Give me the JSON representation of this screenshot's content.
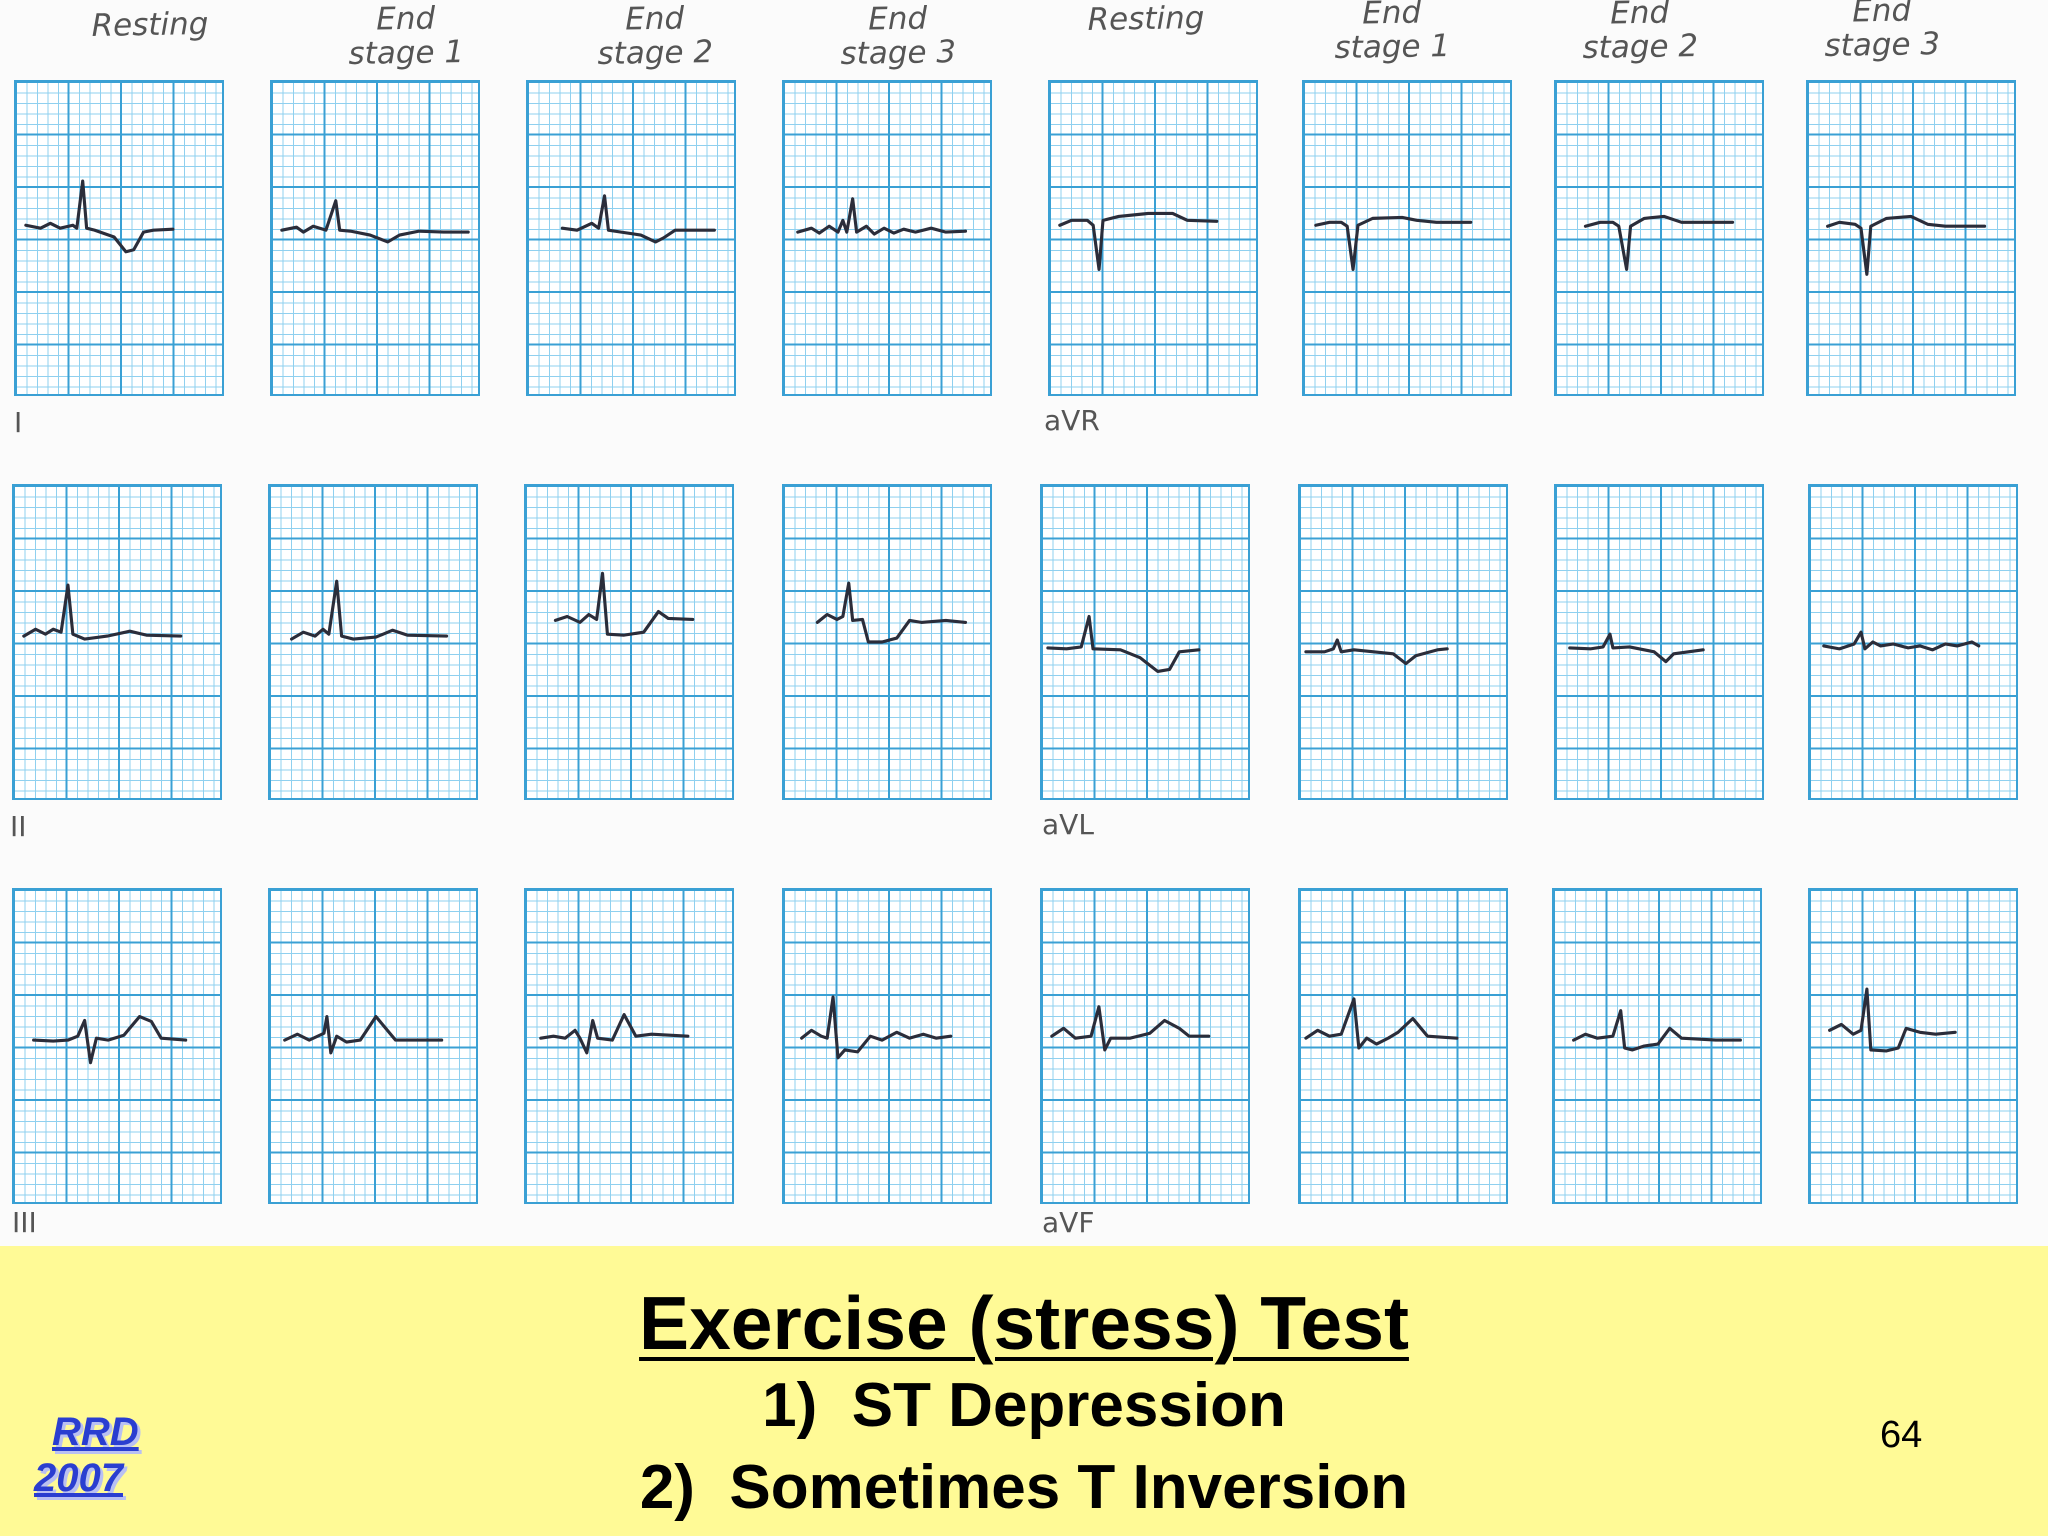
{
  "column_headers": [
    {
      "line1": "",
      "line2": "Resting"
    },
    {
      "line1": "End",
      "line2": "stage 1"
    },
    {
      "line1": "End",
      "line2": "stage 2"
    },
    {
      "line1": "End",
      "line2": "stage 3"
    },
    {
      "line1": "",
      "line2": "Resting"
    },
    {
      "line1": "End",
      "line2": "stage 1"
    },
    {
      "line1": "End",
      "line2": "stage 2"
    },
    {
      "line1": "End",
      "line2": "stage 3"
    }
  ],
  "lead_labels": [
    "I",
    "aVR",
    "II",
    "aVL",
    "III",
    "aVF"
  ],
  "ecg_strip_grid": {
    "rows": 3,
    "columns": 8,
    "rows_leads_left": [
      "I",
      "II",
      "III"
    ],
    "rows_leads_right": [
      "aVR",
      "aVL",
      "aVF"
    ],
    "trace_colors": {
      "trace": "#2b2d3a",
      "grid_major": "#3aa0d4",
      "grid_minor": "#8fd0ef"
    }
  },
  "slide": {
    "title": "Exercise (stress) Test",
    "points": [
      "1)  ST Depression",
      "2)  Sometimes T Inversion"
    ],
    "page_number": "64",
    "logo_line1": "RRD",
    "logo_line2": "2007",
    "background_color": "#fffa96"
  }
}
